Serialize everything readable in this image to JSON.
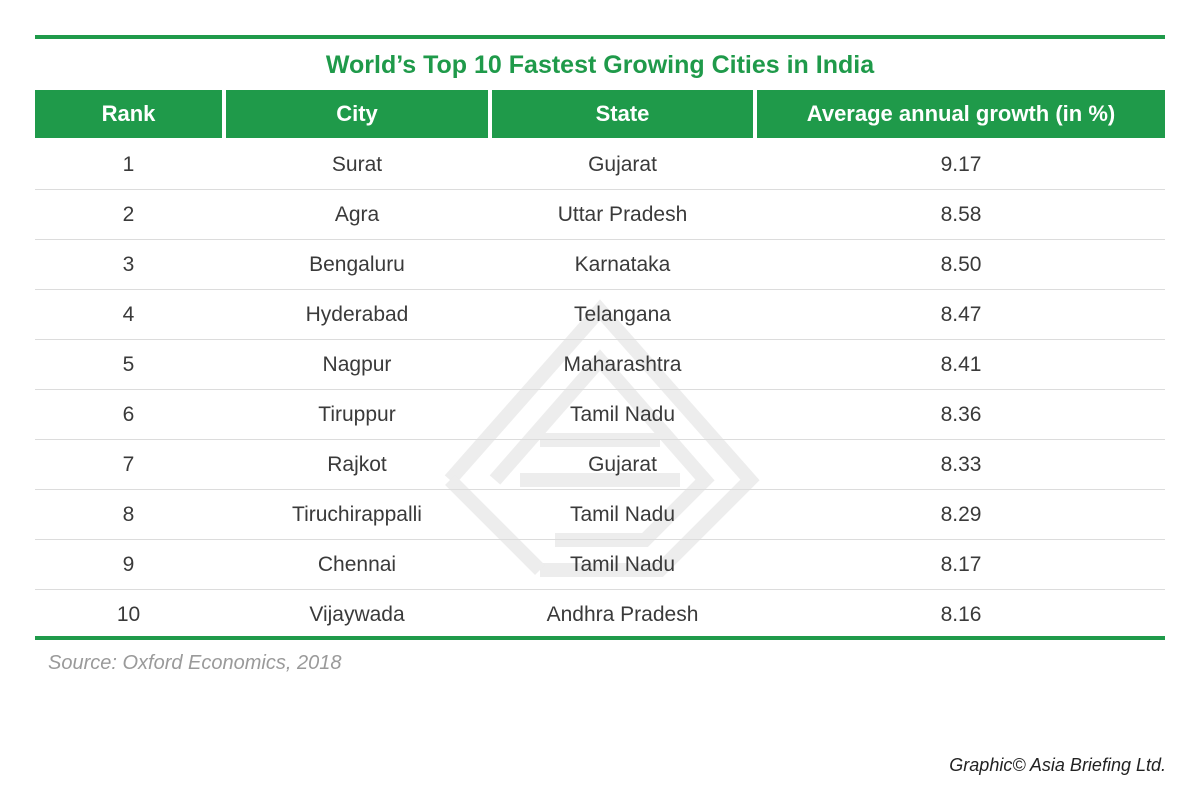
{
  "chart_data": {
    "type": "table",
    "title": "World’s Top 10 Fastest Growing Cities in India",
    "columns": [
      "Rank",
      "City",
      "State",
      "Average annual growth (in %)"
    ],
    "rows": [
      [
        "1",
        "Surat",
        "Gujarat",
        "9.17"
      ],
      [
        "2",
        "Agra",
        "Uttar Pradesh",
        "8.58"
      ],
      [
        "3",
        "Bengaluru",
        "Karnataka",
        "8.50"
      ],
      [
        "4",
        "Hyderabad",
        "Telangana",
        "8.47"
      ],
      [
        "5",
        "Nagpur",
        "Maharashtra",
        "8.41"
      ],
      [
        "6",
        "Tiruppur",
        "Tamil Nadu",
        "8.36"
      ],
      [
        "7",
        "Rajkot",
        "Gujarat",
        "8.33"
      ],
      [
        "8",
        "Tiruchirappalli",
        "Tamil Nadu",
        "8.29"
      ],
      [
        "9",
        "Chennai",
        "Tamil Nadu",
        "8.17"
      ],
      [
        "10",
        "Vijaywada",
        "Andhra Pradesh",
        "8.16"
      ]
    ],
    "source": "Source: Oxford Economics, 2018",
    "credit": "Graphic© Asia Briefing Ltd."
  },
  "colors": {
    "accent": "#1f9a4a",
    "header_text": "#ffffff",
    "row_divider": "#dcdcdc",
    "source_text": "#9a9a9a"
  },
  "watermark": {
    "icon": "asia-briefing-logo-icon"
  }
}
